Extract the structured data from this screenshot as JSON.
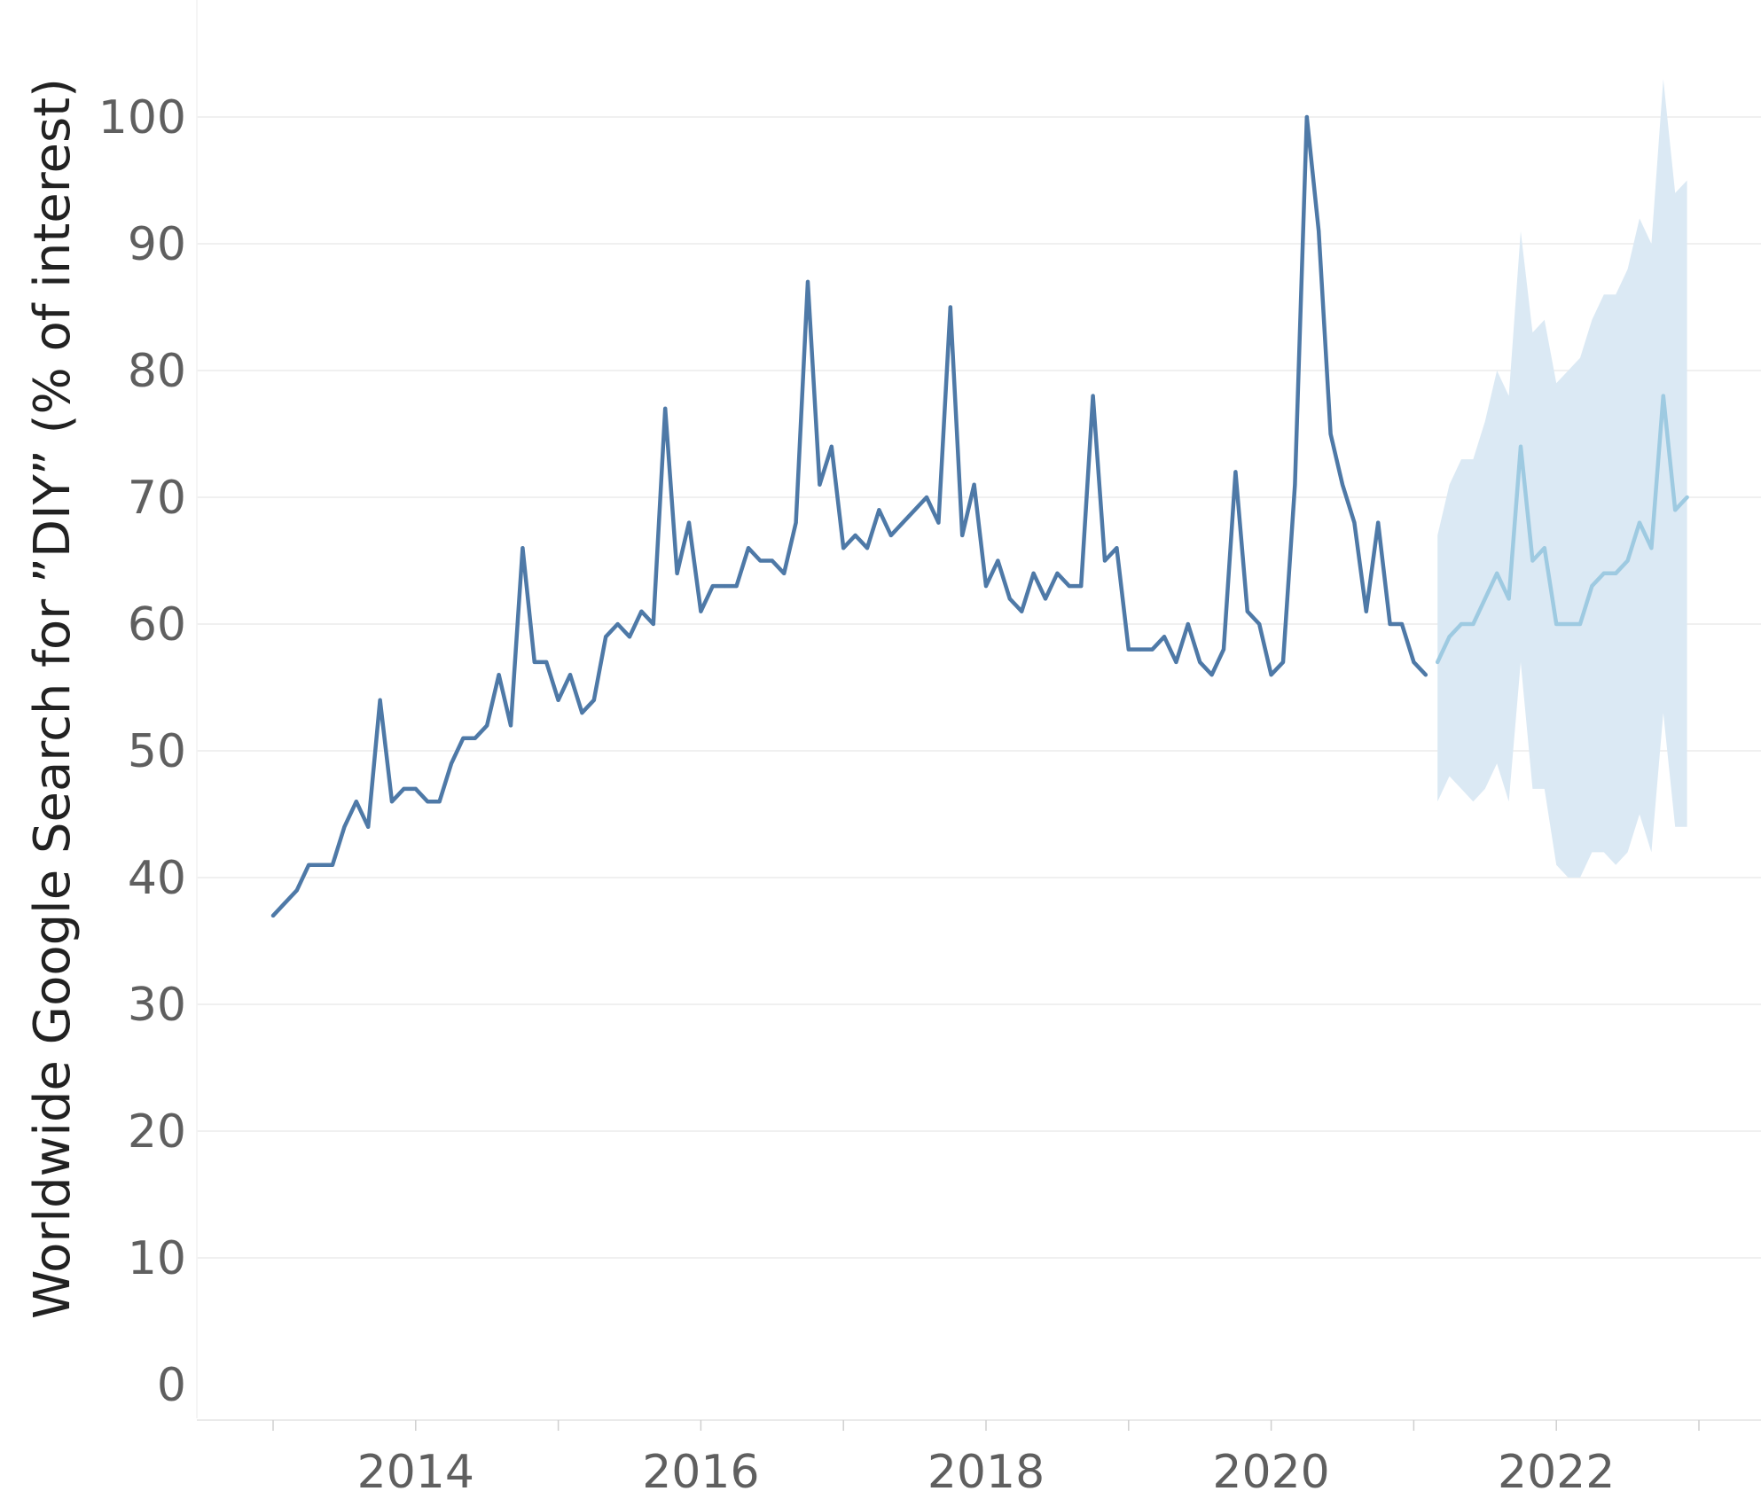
{
  "chart_data": {
    "type": "line",
    "title": "",
    "xlabel": "",
    "ylabel": "Worldwide Google Search for ”DIY” (% of interest)",
    "ylim": [
      0,
      100
    ],
    "yticks": [
      "0",
      "10",
      "20",
      "30",
      "40",
      "50",
      "60",
      "70",
      "80",
      "90",
      "100"
    ],
    "xticks": [
      "2014",
      "2016",
      "2018",
      "2020",
      "2022"
    ],
    "grid": true,
    "legend": "none",
    "colors": {
      "actual": "#4e79a7",
      "forecast": "#9ecae1",
      "band": "#dbe9f4",
      "grid": "#ececec"
    },
    "series": [
      {
        "kind": "actual",
        "x": [
          "2013-01",
          "2013-02",
          "2013-03",
          "2013-04",
          "2013-05",
          "2013-06",
          "2013-07",
          "2013-08",
          "2013-09",
          "2013-10",
          "2013-11",
          "2013-12",
          "2014-01",
          "2014-02",
          "2014-03",
          "2014-04",
          "2014-05",
          "2014-06",
          "2014-07",
          "2014-08",
          "2014-09",
          "2014-10",
          "2014-11",
          "2014-12",
          "2015-01",
          "2015-02",
          "2015-03",
          "2015-04",
          "2015-05",
          "2015-06",
          "2015-07",
          "2015-08",
          "2015-09",
          "2015-10",
          "2015-11",
          "2015-12",
          "2016-01",
          "2016-02",
          "2016-03",
          "2016-04",
          "2016-05",
          "2016-06",
          "2016-07",
          "2016-08",
          "2016-09",
          "2016-10",
          "2016-11",
          "2016-12",
          "2017-01",
          "2017-02",
          "2017-03",
          "2017-04",
          "2017-05",
          "2017-06",
          "2017-07",
          "2017-08",
          "2017-09",
          "2017-10",
          "2017-11",
          "2017-12",
          "2018-01",
          "2018-02",
          "2018-03",
          "2018-04",
          "2018-05",
          "2018-06",
          "2018-07",
          "2018-08",
          "2018-09",
          "2018-10",
          "2018-11",
          "2018-12",
          "2019-01",
          "2019-02",
          "2019-03",
          "2019-04",
          "2019-05",
          "2019-06",
          "2019-07",
          "2019-08",
          "2019-09",
          "2019-10",
          "2019-11",
          "2019-12",
          "2020-01",
          "2020-02",
          "2020-03",
          "2020-04",
          "2020-05",
          "2020-06",
          "2020-07",
          "2020-08",
          "2020-09",
          "2020-10",
          "2020-11",
          "2020-12",
          "2021-01",
          "2021-02"
        ],
        "values": [
          37,
          38,
          39,
          41,
          41,
          41,
          44,
          46,
          44,
          54,
          46,
          47,
          47,
          46,
          46,
          49,
          51,
          51,
          52,
          56,
          52,
          66,
          57,
          57,
          54,
          56,
          53,
          54,
          59,
          60,
          59,
          61,
          60,
          77,
          64,
          68,
          61,
          63,
          63,
          63,
          66,
          65,
          65,
          64,
          68,
          87,
          71,
          74,
          66,
          67,
          66,
          69,
          67,
          68,
          69,
          70,
          68,
          85,
          67,
          71,
          63,
          65,
          62,
          61,
          64,
          62,
          64,
          63,
          63,
          78,
          65,
          66,
          58,
          58,
          58,
          59,
          57,
          60,
          57,
          56,
          58,
          72,
          61,
          60,
          56,
          57,
          71,
          100,
          91,
          75,
          71,
          68,
          61,
          68,
          60,
          60,
          57,
          56
        ]
      },
      {
        "kind": "forecast",
        "x": [
          "2021-03",
          "2021-04",
          "2021-05",
          "2021-06",
          "2021-07",
          "2021-08",
          "2021-09",
          "2021-10",
          "2021-11",
          "2021-12",
          "2022-01",
          "2022-02",
          "2022-03",
          "2022-04",
          "2022-05",
          "2022-06",
          "2022-07",
          "2022-08",
          "2022-09",
          "2022-10",
          "2022-11",
          "2022-12"
        ],
        "values": [
          57,
          59,
          60,
          60,
          62,
          64,
          62,
          74,
          65,
          66,
          60,
          60,
          60,
          63,
          64,
          64,
          65,
          68,
          66,
          78,
          69,
          70
        ],
        "upper": [
          67,
          71,
          73,
          73,
          76,
          80,
          78,
          91,
          83,
          84,
          79,
          80,
          81,
          84,
          86,
          86,
          88,
          92,
          90,
          103,
          94,
          95
        ],
        "lower": [
          46,
          48,
          47,
          46,
          47,
          49,
          46,
          57,
          47,
          47,
          41,
          40,
          40,
          42,
          42,
          41,
          42,
          45,
          42,
          53,
          44,
          44
        ]
      }
    ]
  }
}
